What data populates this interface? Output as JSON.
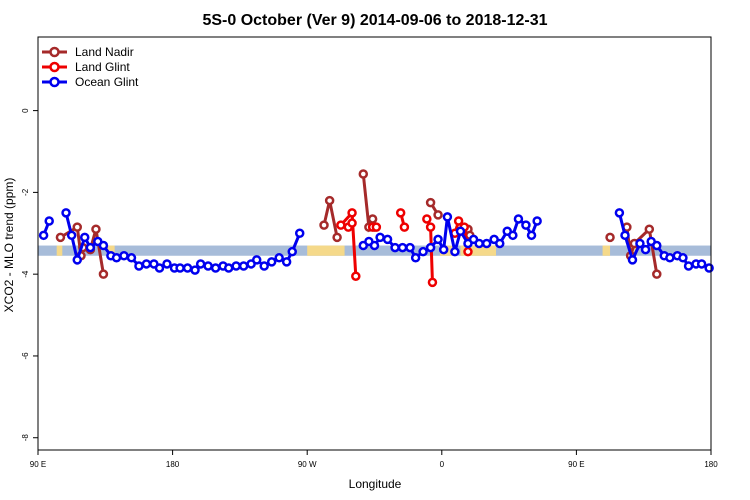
{
  "chart_data": {
    "type": "line",
    "title": "5S-0 October (Ver 9)   2014-09-06 to 2018-12-31",
    "xlabel": "Longitude",
    "ylabel": "XCO2 - MLO trend (ppm)",
    "xlim": [
      90,
      450
    ],
    "ylim": [
      -8.3,
      1.8
    ],
    "x_ticks": [
      90,
      162,
      234,
      306,
      378,
      450
    ],
    "x_tick_labels": [
      "90 E",
      "180",
      "90 W",
      "0",
      "90 E",
      "180"
    ],
    "y_ticks": [
      -8,
      -6,
      -4,
      -2,
      0
    ],
    "y_tick_labels": [
      "-8",
      "-6",
      "-4",
      "-2",
      "0"
    ],
    "legend_position": "top-left",
    "band": {
      "y_range": [
        -3.55,
        -3.3
      ],
      "ocean_color": "#a7bcd9",
      "land_color": "#f5d98a",
      "land_segments": [
        [
          100,
          103
        ],
        [
          127,
          131
        ],
        [
          234,
          254
        ],
        [
          305,
          314
        ],
        [
          316,
          335
        ],
        [
          392,
          396
        ],
        [
          406,
          410
        ]
      ]
    },
    "series": [
      {
        "name": "Land Nadir",
        "color": "#a52a2a",
        "segments": [
          [
            [
              102,
              -3.1
            ],
            [
              111,
              -2.85
            ],
            [
              113,
              -3.55
            ],
            [
              114,
              -3.35
            ],
            [
              118,
              -3.4
            ],
            [
              121,
              -2.9
            ],
            [
              125,
              -4.0
            ]
          ],
          [
            [
              243,
              -2.8
            ],
            [
              246,
              -2.2
            ],
            [
              250,
              -3.1
            ]
          ],
          [
            [
              264,
              -1.55
            ],
            [
              267,
              -2.85
            ],
            [
              269,
              -2.65
            ],
            [
              270,
              -2.85
            ]
          ],
          [
            [
              300,
              -2.25
            ],
            [
              304,
              -2.55
            ]
          ],
          [
            [
              320,
              -2.9
            ],
            [
              321,
              -3.05
            ]
          ],
          [
            [
              396,
              -3.1
            ]
          ],
          [
            [
              405,
              -2.85
            ],
            [
              407,
              -3.55
            ],
            [
              409,
              -3.25
            ],
            [
              417,
              -2.9
            ],
            [
              421,
              -4.0
            ]
          ]
        ]
      },
      {
        "name": "Land Glint",
        "color": "#ee0000",
        "segments": [
          [
            [
              252,
              -2.8
            ],
            [
              258,
              -2.5
            ],
            [
              260,
              -4.05
            ]
          ],
          [
            [
              256,
              -2.85
            ],
            [
              258,
              -2.75
            ]
          ],
          [
            [
              269,
              -2.85
            ],
            [
              271,
              -2.85
            ]
          ],
          [
            [
              284,
              -2.5
            ],
            [
              286,
              -2.85
            ]
          ],
          [
            [
              298,
              -2.65
            ],
            [
              300,
              -2.85
            ],
            [
              301,
              -4.2
            ]
          ],
          [
            [
              313,
              -3.0
            ],
            [
              315,
              -2.7
            ],
            [
              318,
              -2.85
            ],
            [
              320,
              -3.45
            ]
          ]
        ]
      },
      {
        "name": "Ocean Glint",
        "color": "#0000ee",
        "segments": [
          [
            [
              93,
              -3.05
            ],
            [
              96,
              -2.7
            ]
          ],
          [
            [
              105,
              -2.5
            ],
            [
              108,
              -3.05
            ],
            [
              111,
              -3.65
            ],
            [
              115,
              -3.1
            ],
            [
              118,
              -3.35
            ],
            [
              122,
              -3.2
            ],
            [
              125,
              -3.3
            ],
            [
              129,
              -3.55
            ],
            [
              132,
              -3.6
            ],
            [
              136,
              -3.55
            ],
            [
              140,
              -3.6
            ],
            [
              144,
              -3.8
            ],
            [
              148,
              -3.75
            ],
            [
              152,
              -3.75
            ],
            [
              155,
              -3.85
            ],
            [
              159,
              -3.75
            ],
            [
              163,
              -3.85
            ],
            [
              166,
              -3.85
            ],
            [
              170,
              -3.85
            ],
            [
              174,
              -3.9
            ],
            [
              177,
              -3.75
            ],
            [
              181,
              -3.8
            ],
            [
              185,
              -3.85
            ],
            [
              189,
              -3.8
            ],
            [
              192,
              -3.85
            ],
            [
              196,
              -3.8
            ],
            [
              200,
              -3.8
            ],
            [
              204,
              -3.75
            ],
            [
              207,
              -3.65
            ],
            [
              211,
              -3.8
            ],
            [
              215,
              -3.7
            ],
            [
              219,
              -3.6
            ],
            [
              223,
              -3.7
            ],
            [
              226,
              -3.45
            ],
            [
              230,
              -3.0
            ]
          ],
          [
            [
              264,
              -3.3
            ],
            [
              267,
              -3.2
            ],
            [
              270,
              -3.3
            ],
            [
              273,
              -3.1
            ],
            [
              277,
              -3.15
            ],
            [
              281,
              -3.35
            ],
            [
              285,
              -3.35
            ],
            [
              289,
              -3.35
            ],
            [
              292,
              -3.6
            ],
            [
              296,
              -3.45
            ],
            [
              300,
              -3.35
            ],
            [
              304,
              -3.15
            ],
            [
              307,
              -3.4
            ],
            [
              309,
              -2.6
            ],
            [
              313,
              -3.45
            ],
            [
              316,
              -2.95
            ],
            [
              320,
              -3.25
            ],
            [
              323,
              -3.15
            ],
            [
              326,
              -3.25
            ],
            [
              330,
              -3.25
            ],
            [
              334,
              -3.15
            ],
            [
              337,
              -3.25
            ],
            [
              341,
              -2.95
            ],
            [
              344,
              -3.05
            ],
            [
              347,
              -2.65
            ],
            [
              351,
              -2.8
            ],
            [
              354,
              -3.05
            ],
            [
              357,
              -2.7
            ]
          ],
          [
            [
              401,
              -2.5
            ],
            [
              404,
              -3.05
            ],
            [
              408,
              -3.65
            ],
            [
              412,
              -3.25
            ],
            [
              415,
              -3.4
            ],
            [
              418,
              -3.2
            ],
            [
              421,
              -3.3
            ],
            [
              425,
              -3.55
            ],
            [
              428,
              -3.6
            ],
            [
              432,
              -3.55
            ],
            [
              435,
              -3.6
            ],
            [
              438,
              -3.8
            ],
            [
              442,
              -3.75
            ],
            [
              445,
              -3.75
            ],
            [
              449,
              -3.85
            ]
          ]
        ]
      }
    ]
  }
}
